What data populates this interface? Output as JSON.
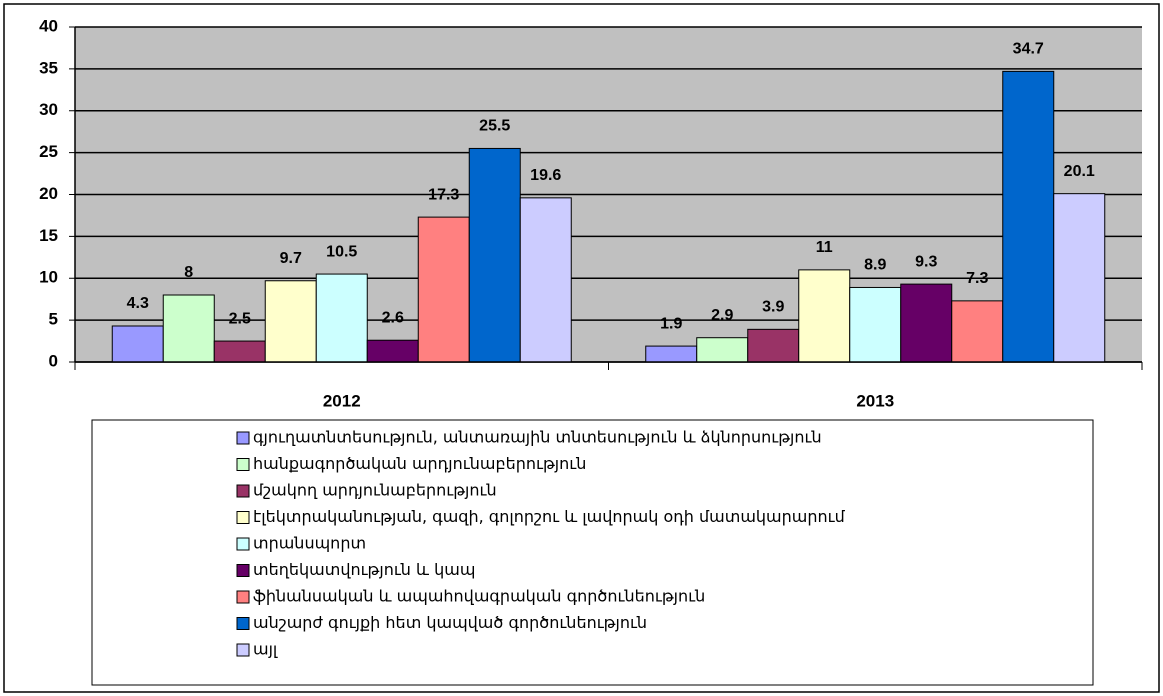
{
  "chart_data": {
    "type": "bar",
    "categories": [
      "2012",
      "2013"
    ],
    "series": [
      {
        "name": "գյուղատնտեսություն, անտառային տնտեսություն և ձկնորսություն",
        "color": "#9999ff",
        "values": [
          4.3,
          1.9
        ]
      },
      {
        "name": "հանքագործական արդյունաբերություն",
        "color": "#ccffcc",
        "values": [
          8,
          2.9
        ]
      },
      {
        "name": "մշակող արդյունաբերություն",
        "color": "#993366",
        "values": [
          2.5,
          3.9
        ]
      },
      {
        "name": "էլեկտրականության, գազի, գոլորշու և լավորակ  օդի  մատակարարում",
        "color": "#ffffcc",
        "values": [
          9.7,
          11
        ]
      },
      {
        "name": "տրանսպորտ",
        "color": "#ccffff",
        "values": [
          10.5,
          8.9
        ]
      },
      {
        "name": "տեղեկատվություն և կապ",
        "color": "#660066",
        "values": [
          2.6,
          9.3
        ]
      },
      {
        "name": "ֆինանսական և ապահովագրական գործունեություն",
        "color": "#ff8080",
        "values": [
          17.3,
          7.3
        ]
      },
      {
        "name": "անշարժ գույքի հետ կապված գործունեություն",
        "color": "#0066cc",
        "values": [
          25.5,
          34.7
        ]
      },
      {
        "name": "այլ",
        "color": "#ccccff",
        "values": [
          19.6,
          20.1
        ]
      }
    ],
    "ylim": [
      0,
      40
    ],
    "yticks": [
      0,
      5,
      10,
      15,
      20,
      25,
      30,
      35,
      40
    ],
    "grid": true,
    "legend": "bottom"
  }
}
